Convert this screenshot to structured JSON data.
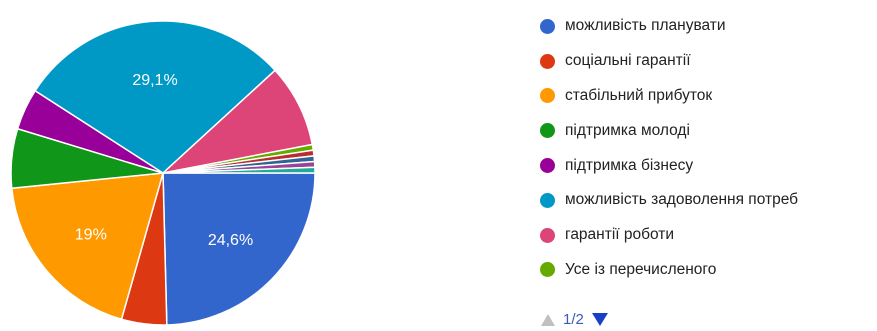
{
  "chart_data": {
    "type": "pie",
    "slices": [
      {
        "name": "можливість планувати",
        "value": 24.6,
        "color": "#3366cc",
        "label": "24,6%"
      },
      {
        "name": "соціальні гарантії",
        "value": 4.8,
        "color": "#dc3912",
        "label": ""
      },
      {
        "name": "стабільний прибуток",
        "value": 19.0,
        "color": "#ff9900",
        "label": "19%"
      },
      {
        "name": "підтримка молоді",
        "value": 6.3,
        "color": "#109618",
        "label": ""
      },
      {
        "name": "підтримка бізнесу",
        "value": 4.4,
        "color": "#990099",
        "label": ""
      },
      {
        "name": "можливість задоволення потреб",
        "value": 29.1,
        "color": "#0099c6",
        "label": "29,1%"
      },
      {
        "name": "гарантії роботи",
        "value": 8.8,
        "color": "#dd4477",
        "label": ""
      },
      {
        "name": "Усе із перечисленого",
        "value": 0.6,
        "color": "#66aa00",
        "label": ""
      },
      {
        "name": "",
        "value": 0.6,
        "color": "#b82e2e",
        "label": ""
      },
      {
        "name": "",
        "value": 0.6,
        "color": "#316395",
        "label": ""
      },
      {
        "name": "",
        "value": 0.6,
        "color": "#994499",
        "label": ""
      },
      {
        "name": "",
        "value": 0.6,
        "color": "#22aa99",
        "label": ""
      }
    ]
  },
  "legend": [
    {
      "label": "можливість планувати",
      "color": "#3366cc"
    },
    {
      "label": "соціальні гарантії",
      "color": "#dc3912"
    },
    {
      "label": "стабільний прибуток",
      "color": "#ff9900"
    },
    {
      "label": "підтримка молоді",
      "color": "#109618"
    },
    {
      "label": "підтримка бізнесу",
      "color": "#990099"
    },
    {
      "label": "можливість задоволення потреб",
      "color": "#0099c6"
    },
    {
      "label": "гарантії роботи",
      "color": "#dd4477"
    },
    {
      "label": "Усе із перечисленого",
      "color": "#66aa00"
    }
  ],
  "pager": {
    "text": "1/2",
    "prev_icon": "triangle-up-icon",
    "next_icon": "triangle-down-icon"
  }
}
